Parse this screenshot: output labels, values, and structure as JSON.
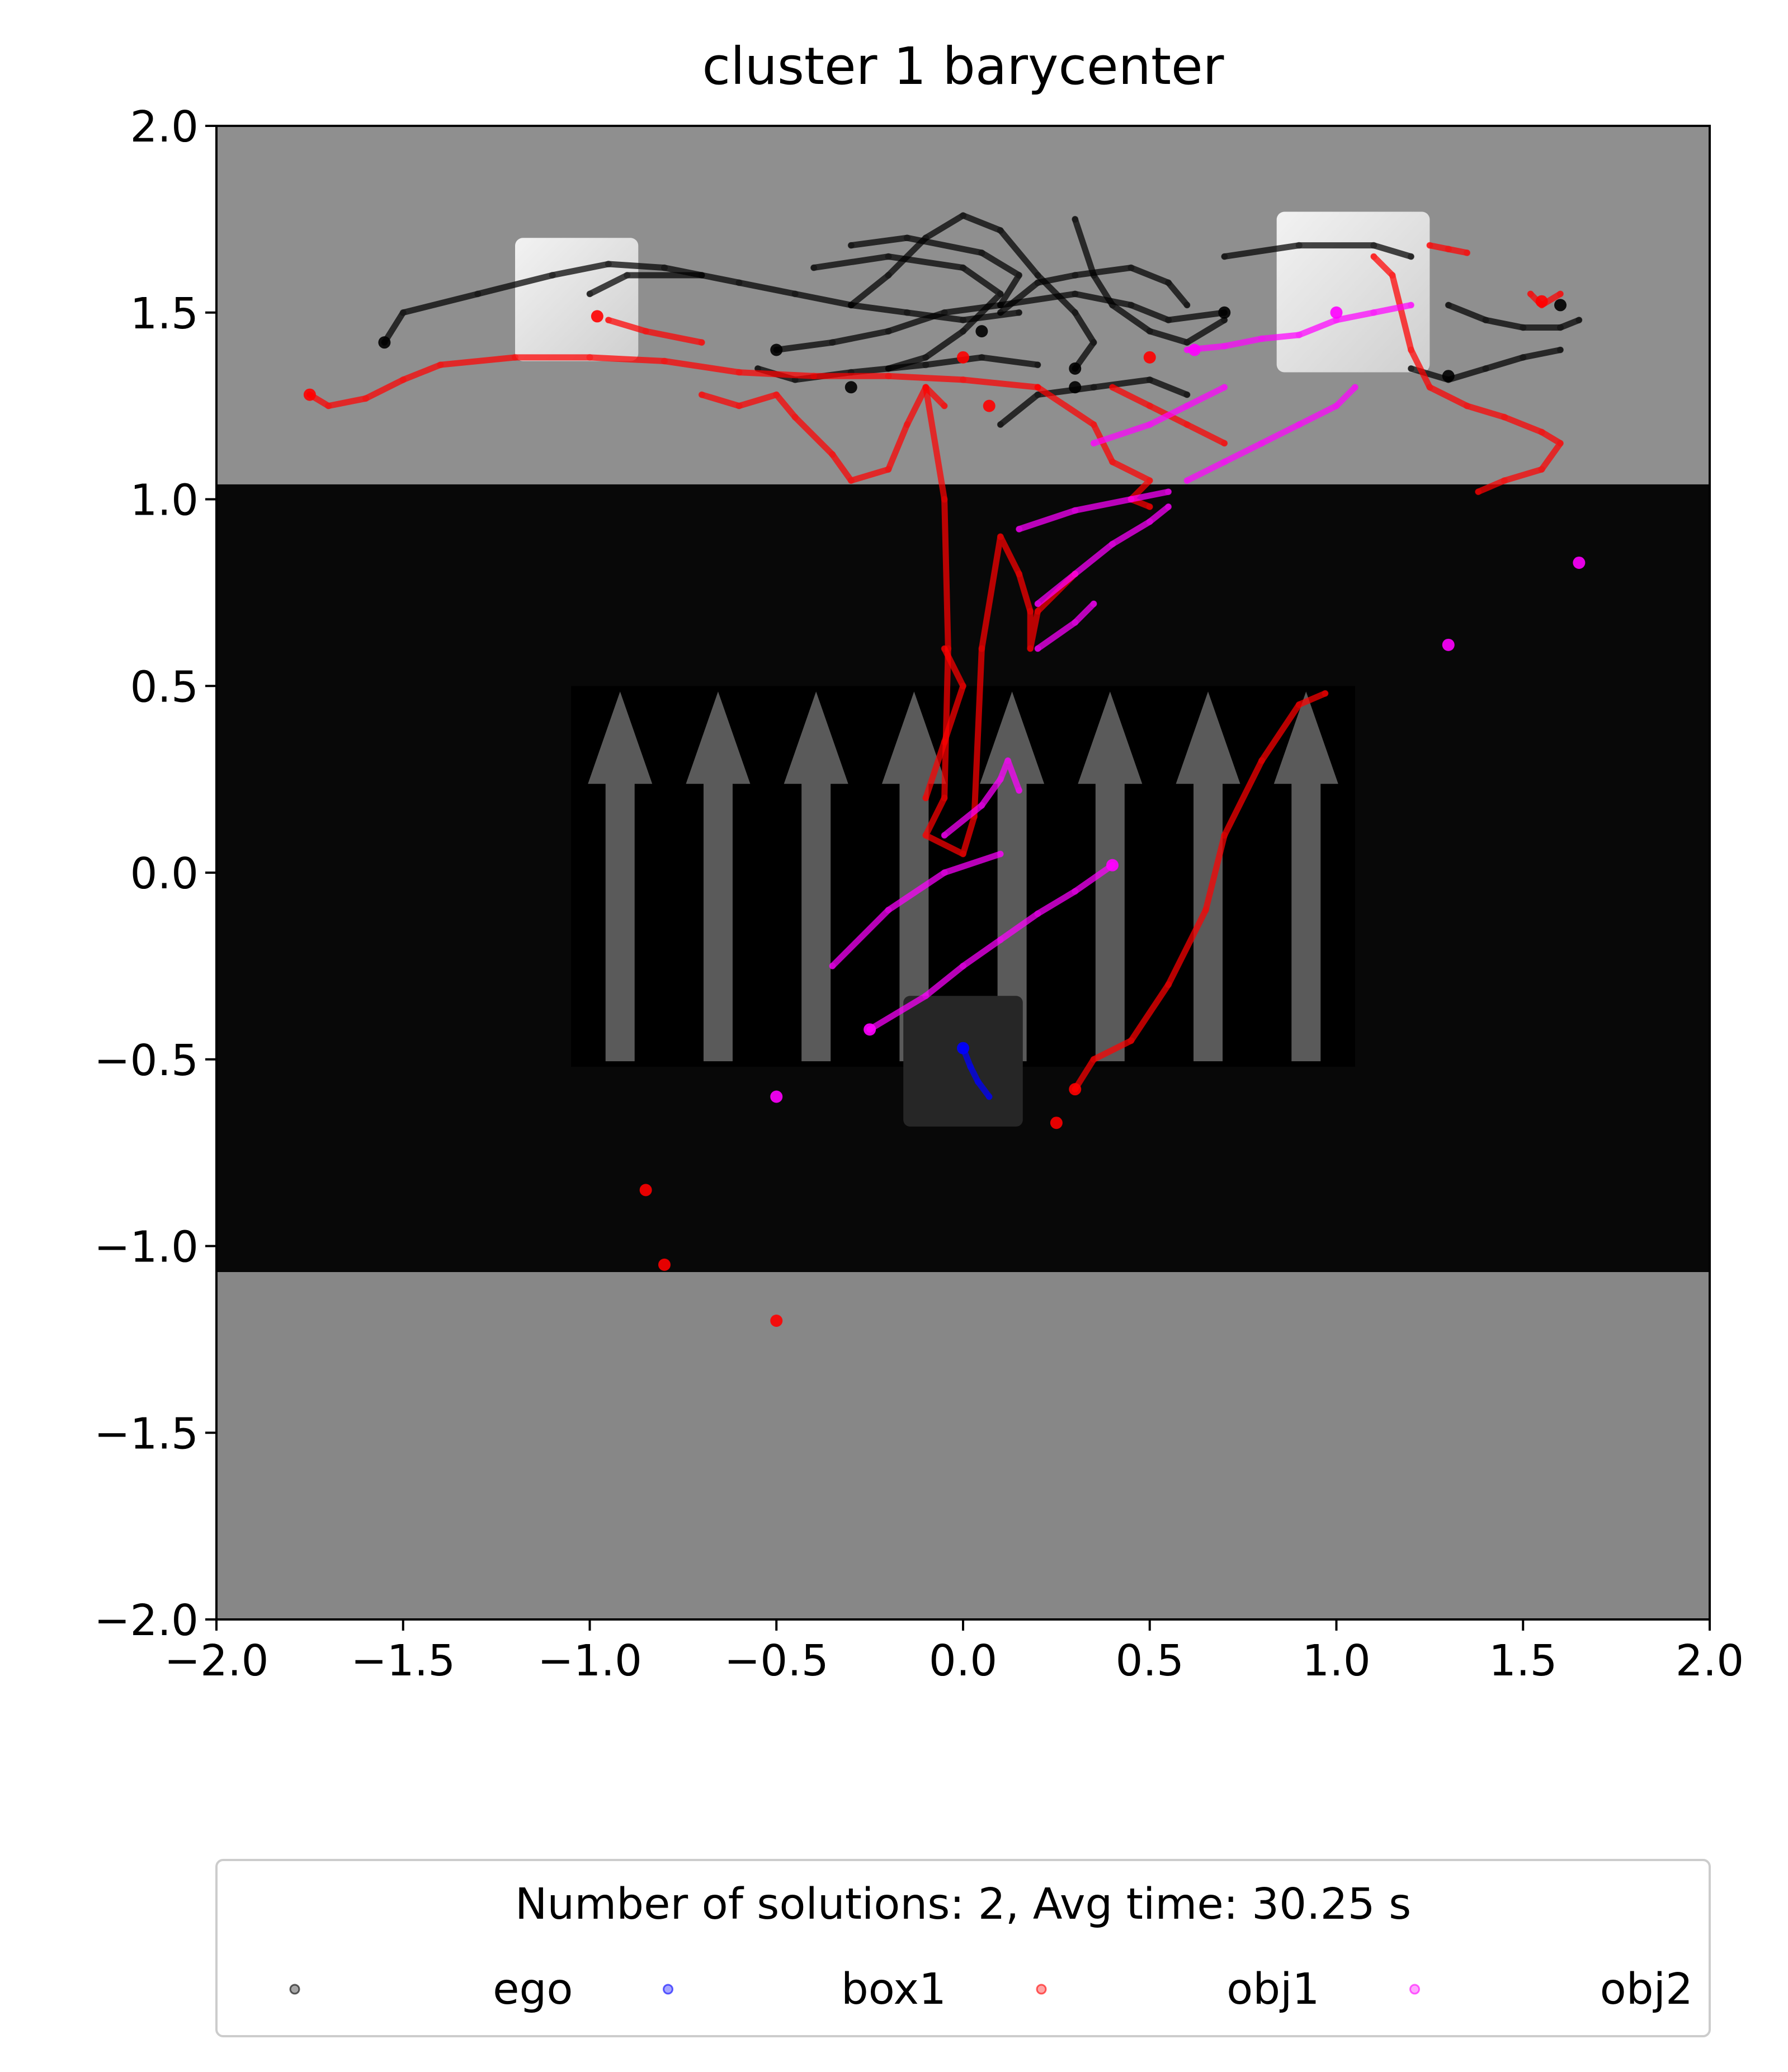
{
  "chart_data": {
    "type": "scatter",
    "title": "cluster 1 barycenter",
    "xlabel": "",
    "ylabel": "",
    "xlim": [
      -2.0,
      2.0
    ],
    "ylim": [
      -2.0,
      2.0
    ],
    "xticks": [
      "−2.0",
      "−1.5",
      "−1.0",
      "−0.5",
      "0.0",
      "0.5",
      "1.0",
      "1.5",
      "2.0"
    ],
    "yticks": [
      "2.0",
      "1.5",
      "1.0",
      "0.5",
      "0.0",
      "−0.5",
      "−1.0",
      "−1.5",
      "−2.0"
    ],
    "grid": false,
    "legend": {
      "title": "Number of solutions: 2, Avg time: 30.25 s",
      "placement": "below",
      "entries": [
        "ego",
        "box1",
        "obj1",
        "obj2"
      ]
    },
    "colors": {
      "ego": "#000000",
      "box1": "#0000ff",
      "obj1": "#ff0000",
      "obj2": "#ff00ff"
    },
    "background": {
      "top_region": {
        "y_range": [
          1.04,
          2.0
        ],
        "color": "#8f8f8f"
      },
      "middle_region": {
        "y_range": [
          -1.07,
          1.04
        ],
        "color": "#080808"
      },
      "bottom_region": {
        "y_range": [
          -2.0,
          -1.07
        ],
        "color": "#878787"
      },
      "arrow_panel": {
        "x_range": [
          -1.05,
          1.05
        ],
        "y_range": [
          -0.52,
          0.5
        ],
        "arrows": 8
      },
      "white_boxes": [
        {
          "x_range": [
            -1.2,
            -0.87
          ],
          "y_range": [
            1.37,
            1.7
          ]
        },
        {
          "x_range": [
            0.84,
            1.25
          ],
          "y_range": [
            1.34,
            1.77
          ]
        }
      ],
      "dark_box": {
        "x_range": [
          -0.16,
          0.16
        ],
        "y_range": [
          -0.68,
          -0.33
        ]
      }
    },
    "series": [
      {
        "name": "ego",
        "paths": [
          [
            [
              -1.55,
              1.42
            ],
            [
              -1.5,
              1.5
            ],
            [
              -1.3,
              1.55
            ],
            [
              -1.1,
              1.6
            ],
            [
              -0.95,
              1.63
            ],
            [
              -0.8,
              1.62
            ],
            [
              -0.6,
              1.58
            ],
            [
              -0.45,
              1.55
            ],
            [
              -0.3,
              1.52
            ],
            [
              -0.15,
              1.5
            ],
            [
              0.0,
              1.48
            ],
            [
              0.15,
              1.5
            ]
          ],
          [
            [
              -0.5,
              1.4
            ],
            [
              -0.35,
              1.42
            ],
            [
              -0.2,
              1.45
            ],
            [
              -0.05,
              1.5
            ],
            [
              0.1,
              1.52
            ],
            [
              0.3,
              1.55
            ],
            [
              0.45,
              1.52
            ],
            [
              0.55,
              1.48
            ],
            [
              0.7,
              1.5
            ]
          ],
          [
            [
              -0.3,
              1.52
            ],
            [
              -0.2,
              1.6
            ],
            [
              -0.1,
              1.7
            ],
            [
              0.0,
              1.76
            ],
            [
              0.1,
              1.72
            ],
            [
              0.2,
              1.6
            ],
            [
              0.3,
              1.5
            ],
            [
              0.35,
              1.42
            ],
            [
              0.3,
              1.35
            ]
          ],
          [
            [
              -0.4,
              1.62
            ],
            [
              -0.2,
              1.65
            ],
            [
              0.0,
              1.62
            ],
            [
              0.1,
              1.55
            ],
            [
              0.0,
              1.45
            ],
            [
              -0.1,
              1.38
            ],
            [
              -0.2,
              1.35
            ]
          ],
          [
            [
              0.3,
              1.75
            ],
            [
              0.35,
              1.6
            ],
            [
              0.4,
              1.52
            ],
            [
              0.5,
              1.45
            ],
            [
              0.6,
              1.42
            ],
            [
              0.7,
              1.48
            ]
          ],
          [
            [
              -0.55,
              1.35
            ],
            [
              -0.45,
              1.32
            ],
            [
              -0.3,
              1.34
            ],
            [
              -0.1,
              1.36
            ],
            [
              0.05,
              1.38
            ],
            [
              0.2,
              1.36
            ]
          ],
          [
            [
              0.1,
              1.2
            ],
            [
              0.2,
              1.28
            ],
            [
              0.35,
              1.3
            ],
            [
              0.5,
              1.32
            ],
            [
              0.6,
              1.28
            ]
          ],
          [
            [
              0.1,
              1.5
            ],
            [
              0.2,
              1.58
            ],
            [
              0.3,
              1.6
            ],
            [
              0.45,
              1.62
            ],
            [
              0.55,
              1.58
            ],
            [
              0.6,
              1.52
            ]
          ],
          [
            [
              -0.3,
              1.68
            ],
            [
              -0.15,
              1.7
            ],
            [
              0.05,
              1.66
            ],
            [
              0.15,
              1.6
            ],
            [
              0.1,
              1.52
            ]
          ],
          [
            [
              1.3,
              1.52
            ],
            [
              1.4,
              1.48
            ],
            [
              1.5,
              1.46
            ],
            [
              1.6,
              1.46
            ],
            [
              1.65,
              1.48
            ]
          ],
          [
            [
              1.2,
              1.35
            ],
            [
              1.3,
              1.32
            ],
            [
              1.4,
              1.35
            ],
            [
              1.5,
              1.38
            ],
            [
              1.6,
              1.4
            ]
          ],
          [
            [
              -1.0,
              1.55
            ],
            [
              -0.9,
              1.6
            ],
            [
              -0.7,
              1.6
            ]
          ],
          [
            [
              0.7,
              1.65
            ],
            [
              0.9,
              1.68
            ],
            [
              1.1,
              1.68
            ],
            [
              1.2,
              1.65
            ]
          ]
        ],
        "points": [
          [
            -1.55,
            1.42
          ],
          [
            0.7,
            1.5
          ],
          [
            0.3,
            1.35
          ],
          [
            1.6,
            1.52
          ],
          [
            1.3,
            1.33
          ],
          [
            -0.3,
            1.3
          ],
          [
            0.3,
            1.3
          ],
          [
            -0.5,
            1.4
          ],
          [
            0.05,
            1.45
          ]
        ]
      },
      {
        "name": "box1",
        "paths": [
          [
            [
              0.0,
              -0.47
            ],
            [
              0.02,
              -0.52
            ],
            [
              0.04,
              -0.56
            ],
            [
              0.07,
              -0.6
            ]
          ]
        ],
        "points": [
          [
            0.0,
            -0.47
          ]
        ]
      },
      {
        "name": "obj1",
        "paths": [
          [
            [
              -1.75,
              1.28
            ],
            [
              -1.7,
              1.25
            ],
            [
              -1.6,
              1.27
            ],
            [
              -1.5,
              1.32
            ],
            [
              -1.4,
              1.36
            ],
            [
              -1.2,
              1.38
            ],
            [
              -1.0,
              1.38
            ],
            [
              -0.8,
              1.37
            ],
            [
              -0.6,
              1.34
            ],
            [
              -0.4,
              1.33
            ],
            [
              -0.2,
              1.33
            ],
            [
              0.0,
              1.32
            ],
            [
              0.2,
              1.3
            ]
          ],
          [
            [
              -0.7,
              1.28
            ],
            [
              -0.6,
              1.25
            ],
            [
              -0.5,
              1.28
            ],
            [
              -0.45,
              1.22
            ],
            [
              -0.35,
              1.12
            ],
            [
              -0.3,
              1.05
            ],
            [
              -0.2,
              1.08
            ],
            [
              -0.15,
              1.2
            ],
            [
              -0.1,
              1.3
            ],
            [
              -0.05,
              1.25
            ]
          ],
          [
            [
              -0.1,
              1.3
            ],
            [
              -0.05,
              1.0
            ],
            [
              -0.04,
              0.6
            ],
            [
              -0.05,
              0.2
            ],
            [
              -0.1,
              0.1
            ],
            [
              0.0,
              0.05
            ],
            [
              0.03,
              0.15
            ],
            [
              0.05,
              0.6
            ],
            [
              0.1,
              0.9
            ],
            [
              0.15,
              0.8
            ],
            [
              0.18,
              0.7
            ],
            [
              0.18,
              0.6
            ],
            [
              0.2,
              0.7
            ],
            [
              0.3,
              0.8
            ]
          ],
          [
            [
              0.2,
              1.3
            ],
            [
              0.35,
              1.2
            ],
            [
              0.4,
              1.1
            ],
            [
              0.5,
              1.05
            ],
            [
              0.45,
              1.0
            ],
            [
              0.5,
              0.98
            ]
          ],
          [
            [
              0.3,
              -0.58
            ],
            [
              0.35,
              -0.5
            ],
            [
              0.45,
              -0.45
            ],
            [
              0.55,
              -0.3
            ],
            [
              0.65,
              -0.1
            ],
            [
              0.7,
              0.1
            ],
            [
              0.8,
              0.3
            ],
            [
              0.9,
              0.45
            ],
            [
              0.97,
              0.48
            ]
          ],
          [
            [
              1.1,
              1.65
            ],
            [
              1.15,
              1.6
            ],
            [
              1.2,
              1.4
            ],
            [
              1.25,
              1.3
            ],
            [
              1.35,
              1.25
            ],
            [
              1.45,
              1.22
            ],
            [
              1.55,
              1.18
            ],
            [
              1.6,
              1.15
            ],
            [
              1.55,
              1.08
            ],
            [
              1.45,
              1.05
            ],
            [
              1.38,
              1.02
            ]
          ],
          [
            [
              1.52,
              1.55
            ],
            [
              1.55,
              1.52
            ],
            [
              1.6,
              1.55
            ]
          ],
          [
            [
              1.25,
              1.68
            ],
            [
              1.3,
              1.67
            ],
            [
              1.35,
              1.66
            ]
          ],
          [
            [
              -0.95,
              1.48
            ],
            [
              -0.85,
              1.45
            ],
            [
              -0.7,
              1.42
            ]
          ],
          [
            [
              0.4,
              1.3
            ],
            [
              0.5,
              1.25
            ],
            [
              0.6,
              1.2
            ],
            [
              0.7,
              1.15
            ]
          ],
          [
            [
              -0.05,
              0.6
            ],
            [
              0.0,
              0.5
            ],
            [
              -0.05,
              0.35
            ],
            [
              -0.1,
              0.2
            ]
          ]
        ],
        "points": [
          [
            -1.75,
            1.28
          ],
          [
            -0.98,
            1.49
          ],
          [
            0.3,
            -0.58
          ],
          [
            1.55,
            1.53
          ],
          [
            0.0,
            1.38
          ],
          [
            0.07,
            1.25
          ],
          [
            0.5,
            1.38
          ],
          [
            -0.85,
            -0.85
          ],
          [
            -0.5,
            -1.2
          ],
          [
            0.25,
            -0.67
          ],
          [
            -0.8,
            -1.05
          ]
        ]
      },
      {
        "name": "obj2",
        "paths": [
          [
            [
              0.6,
              1.4
            ],
            [
              0.7,
              1.41
            ],
            [
              0.8,
              1.43
            ],
            [
              0.9,
              1.44
            ],
            [
              1.0,
              1.48
            ],
            [
              1.1,
              1.5
            ],
            [
              1.2,
              1.52
            ]
          ],
          [
            [
              0.15,
              0.92
            ],
            [
              0.3,
              0.97
            ],
            [
              0.45,
              1.0
            ],
            [
              0.55,
              1.02
            ]
          ],
          [
            [
              0.2,
              0.72
            ],
            [
              0.3,
              0.8
            ],
            [
              0.4,
              0.88
            ],
            [
              0.5,
              0.94
            ],
            [
              0.55,
              0.98
            ]
          ],
          [
            [
              0.2,
              0.6
            ],
            [
              0.3,
              0.67
            ],
            [
              0.35,
              0.72
            ]
          ],
          [
            [
              -0.05,
              0.1
            ],
            [
              0.05,
              0.18
            ],
            [
              0.1,
              0.25
            ],
            [
              0.12,
              0.3
            ],
            [
              0.15,
              0.22
            ]
          ],
          [
            [
              -0.25,
              -0.42
            ],
            [
              -0.1,
              -0.33
            ],
            [
              0.0,
              -0.25
            ],
            [
              0.1,
              -0.18
            ],
            [
              0.2,
              -0.11
            ],
            [
              0.3,
              -0.05
            ],
            [
              0.4,
              0.02
            ]
          ],
          [
            [
              -0.35,
              -0.25
            ],
            [
              -0.2,
              -0.1
            ],
            [
              -0.05,
              0.0
            ],
            [
              0.1,
              0.05
            ]
          ],
          [
            [
              0.35,
              1.15
            ],
            [
              0.5,
              1.2
            ],
            [
              0.6,
              1.25
            ],
            [
              0.7,
              1.3
            ]
          ],
          [
            [
              0.6,
              1.05
            ],
            [
              0.7,
              1.1
            ],
            [
              0.8,
              1.15
            ],
            [
              0.9,
              1.2
            ],
            [
              1.0,
              1.25
            ],
            [
              1.05,
              1.3
            ]
          ]
        ],
        "points": [
          [
            1.0,
            1.5
          ],
          [
            0.62,
            1.4
          ],
          [
            0.4,
            0.02
          ],
          [
            -0.25,
            -0.42
          ],
          [
            -0.5,
            -0.6
          ],
          [
            1.65,
            0.83
          ],
          [
            1.3,
            0.61
          ]
        ]
      }
    ]
  }
}
